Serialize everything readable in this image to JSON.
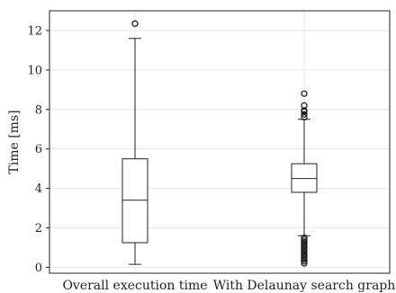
{
  "chart_data": {
    "type": "box",
    "title": "",
    "xlabel": "",
    "ylabel": "Time [ms]",
    "ylim": [
      -0.3,
      13
    ],
    "yticks": [
      0,
      2,
      4,
      6,
      8,
      10,
      12
    ],
    "grid": true,
    "categories": [
      "Overall execution time",
      "With Delaunay search graph"
    ],
    "boxes": [
      {
        "category": "Overall execution time",
        "whisker_low": 0.15,
        "q1": 1.25,
        "median": 3.4,
        "q3": 5.5,
        "whisker_high": 11.6,
        "outliers": [
          12.35
        ]
      },
      {
        "category": "With Delaunay search graph",
        "whisker_low": 1.6,
        "q1": 3.8,
        "median": 4.5,
        "q3": 5.25,
        "whisker_high": 7.5,
        "outliers": [
          7.6,
          7.75,
          7.9,
          7.95,
          8.2,
          8.8,
          1.5,
          1.4,
          1.3,
          1.2,
          1.1,
          1.0,
          0.9,
          0.8,
          0.7,
          0.6,
          0.5,
          0.4,
          0.3,
          0.2
        ]
      }
    ]
  }
}
